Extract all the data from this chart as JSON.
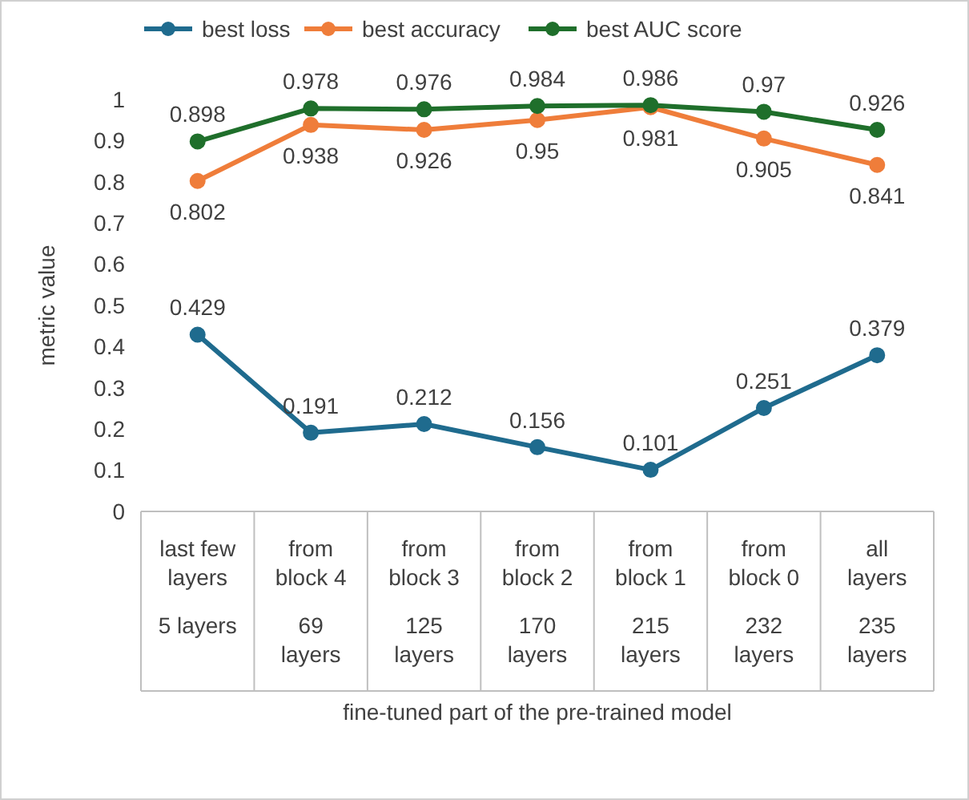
{
  "chart_data": {
    "type": "line",
    "xlabel": "fine-tuned part of the pre-trained model",
    "ylabel": "metric value",
    "categories": [
      "last few layers\n5 layers",
      "from block 4\n69 layers",
      "from block 3\n125 layers",
      "from block 2\n170 layers",
      "from block 1\n215 layers",
      "from block 0\n232 layers",
      "all layers\n235 layers"
    ],
    "series": [
      {
        "name": "best loss",
        "color": "#1f6b8e",
        "values": [
          0.429,
          0.191,
          0.212,
          0.156,
          0.101,
          0.251,
          0.379
        ]
      },
      {
        "name": "best accuracy",
        "color": "#ef7d3a",
        "values": [
          0.802,
          0.938,
          0.926,
          0.95,
          0.981,
          0.905,
          0.841
        ]
      },
      {
        "name": "best AUC score",
        "color": "#1f6f2b",
        "values": [
          0.898,
          0.978,
          0.976,
          0.984,
          0.986,
          0.97,
          0.926
        ]
      }
    ],
    "ylim": [
      0,
      1
    ],
    "yticks": [
      0,
      0.1,
      0.2,
      0.3,
      0.4,
      0.5,
      0.6,
      0.7,
      0.8,
      0.9,
      1
    ],
    "marker": "circle",
    "line_style": "solid",
    "legend": "top",
    "data_labels": true,
    "grid": false
  }
}
